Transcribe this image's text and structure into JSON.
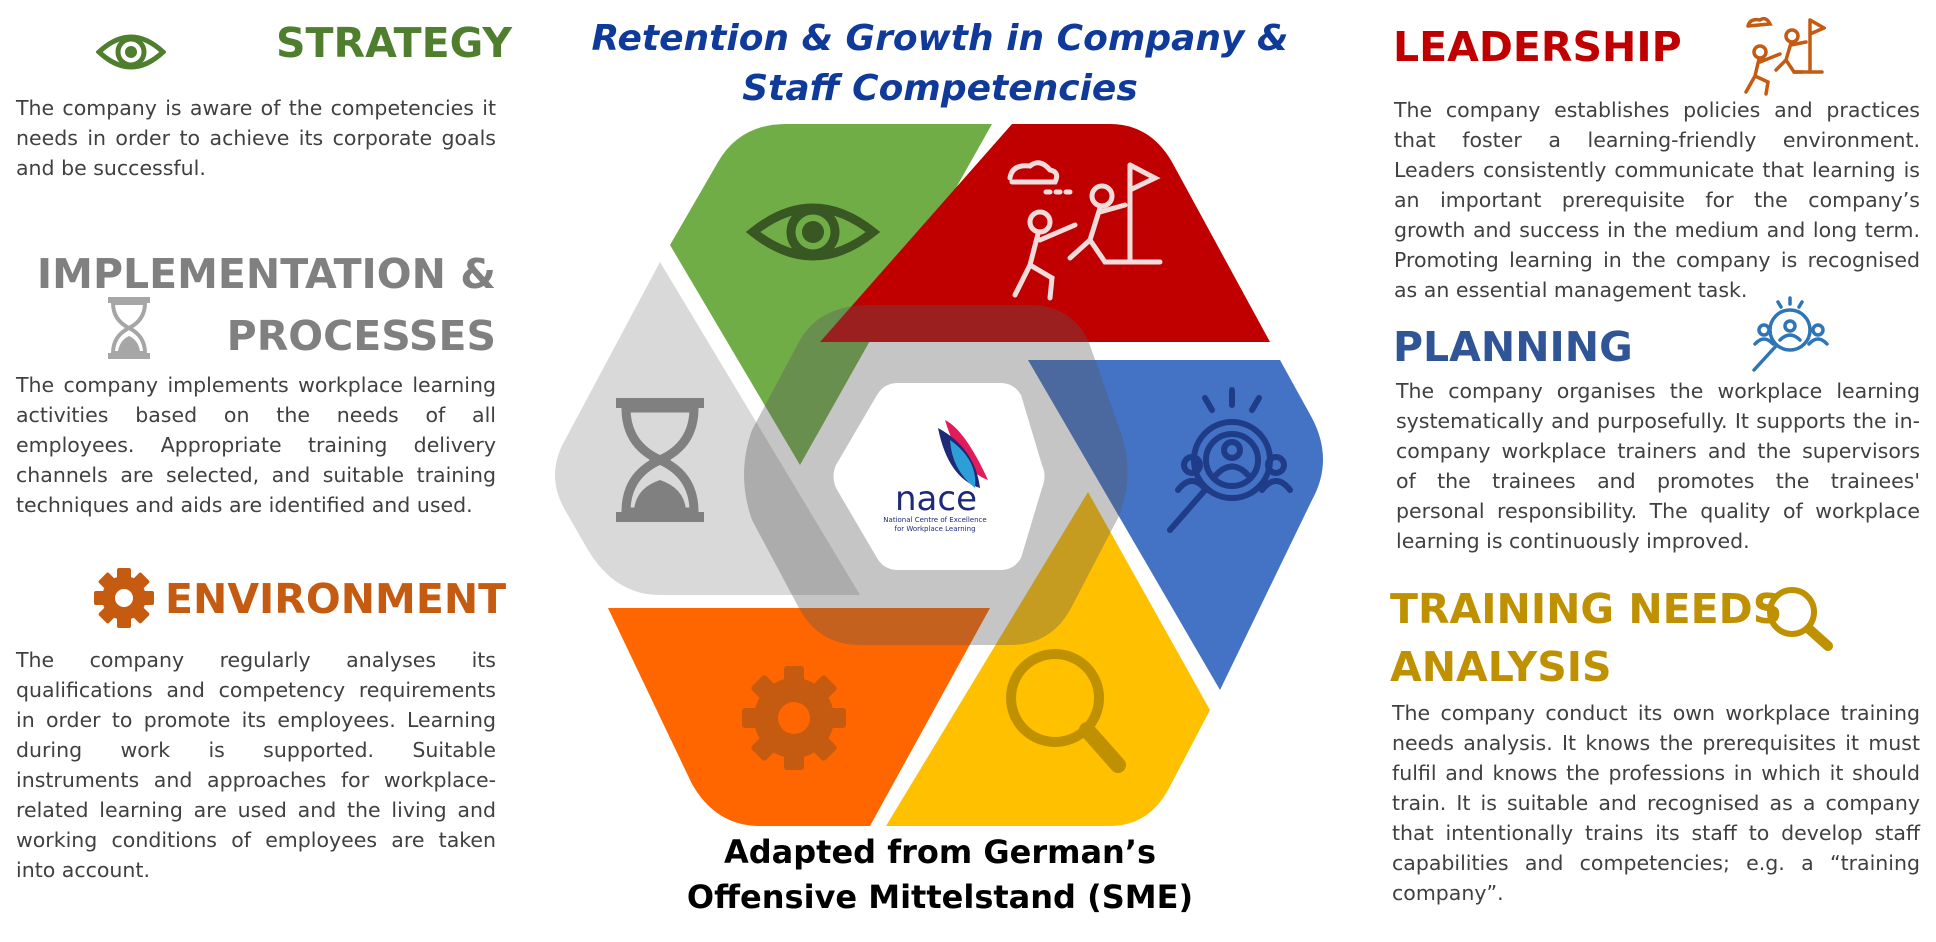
{
  "title": "Retention & Growth in Company & Staff Competencies",
  "caption": {
    "line1": "Adapted from German’s",
    "line2": "Offensive Mittelstand (SME)"
  },
  "logo": {
    "name": "nace",
    "line1": "National Centre of Excellence",
    "line2": "for Workplace Learning"
  },
  "colors": {
    "strategy": "#70ad47",
    "leadership": "#c00000",
    "planning": "#4472c4",
    "training": "#ffc000",
    "environment": "#ff6600",
    "implementation": "#d9d9d9",
    "title": "#0f3a9a"
  },
  "sections": {
    "strategy": {
      "heading": "STRATEGY",
      "icon": "eye-icon",
      "text": "The company is aware of the competencies it needs in order to achieve its corporate goals and be successful."
    },
    "implementation": {
      "heading_line1": "IMPLEMENTATION &",
      "heading_line2": "PROCESSES",
      "icon": "hourglass-icon",
      "text": "The company implements workplace learning activities based on the needs of all employees. Appropriate training delivery channels are selected, and suitable training techniques and aids are identified and used."
    },
    "environment": {
      "heading": "ENVIRONMENT",
      "icon": "gear-icon",
      "text": "The company regularly analyses its qualifications and competency requirements in order to promote its employees. Learning during work is supported. Suitable instruments and approaches for workplace-related learning are used and the living and working conditions of employees are taken into account."
    },
    "leadership": {
      "heading": "LEADERSHIP",
      "icon": "climbing-team-icon",
      "text": "The company establishes policies and practices that foster a learning-friendly environment. Leaders consistently communicate that learning is an important prerequisite for the company’s growth and success in the medium and long term. Promoting learning in the company is recognised as an essential management task."
    },
    "planning": {
      "heading": "PLANNING",
      "icon": "people-search-icon",
      "text": "The company organises the workplace learning systematically and purposefully. It supports the in-company workplace trainers and the supervisors of the trainees and promotes the trainees' personal responsibility. The quality of workplace learning is continuously improved."
    },
    "training": {
      "heading_line1": "TRAINING NEEDS",
      "heading_line2": "ANALYSIS",
      "icon": "magnifier-icon",
      "text": "The company conduct its own workplace training needs analysis. It knows the prerequisites it must fulfil and knows the professions in which it should train. It is suitable and recognised as a company that intentionally trains its staff to develop staff capabilities and competencies; e.g. a “training company”."
    }
  }
}
